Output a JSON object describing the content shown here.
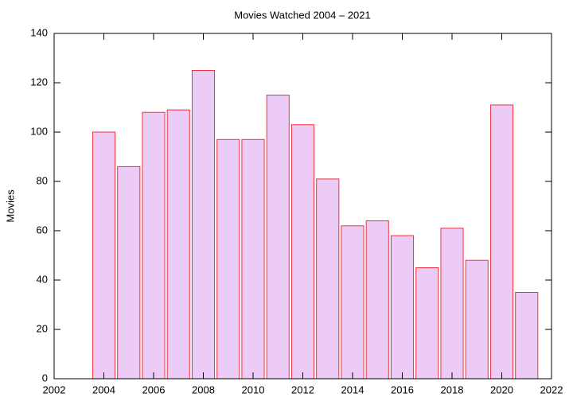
{
  "chart_data": {
    "type": "bar",
    "title": "Movies Watched 2004 – 2021",
    "ylabel": "Movies",
    "x": [
      2004,
      2005,
      2006,
      2007,
      2008,
      2009,
      2010,
      2011,
      2012,
      2013,
      2014,
      2015,
      2016,
      2017,
      2018,
      2019,
      2020,
      2021
    ],
    "values": [
      100,
      86,
      108,
      109,
      125,
      97,
      97,
      115,
      103,
      81,
      62,
      64,
      58,
      45,
      61,
      48,
      111,
      35
    ],
    "color": "#ecccf6",
    "edge_color": "#f2313a",
    "xlim": [
      2002,
      2022
    ],
    "xticks": [
      2002,
      2004,
      2006,
      2008,
      2010,
      2012,
      2014,
      2016,
      2018,
      2020,
      2022
    ],
    "ylim": [
      0,
      140
    ],
    "yticks": [
      0,
      20,
      40,
      60,
      80,
      100,
      120,
      140
    ],
    "grid": false
  }
}
